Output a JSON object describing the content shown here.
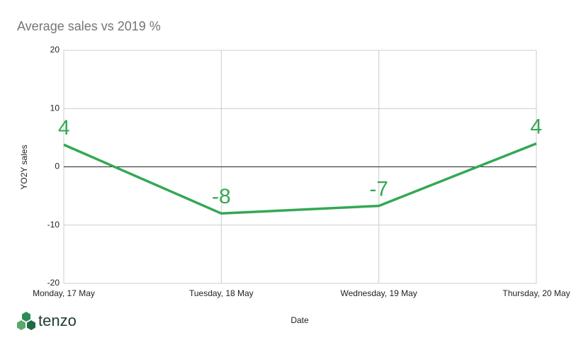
{
  "chart_data": {
    "type": "line",
    "title": "Average sales vs 2019 %",
    "x_label": "Date",
    "y_label": "YO2Y sales",
    "categories": [
      "Monday, 17 May",
      "Tuesday, 18 May",
      "Wednesday, 19 May",
      "Thursday, 20 May"
    ],
    "values": [
      3.8,
      -8,
      -6.7,
      4
    ],
    "value_labels": [
      "4",
      "-8",
      "-7",
      "4"
    ],
    "color": "#34a853",
    "ylim": [
      -20,
      20
    ],
    "yticks": [
      -20,
      -10,
      0,
      10,
      20
    ],
    "grid": true
  },
  "logo": "tenzo"
}
